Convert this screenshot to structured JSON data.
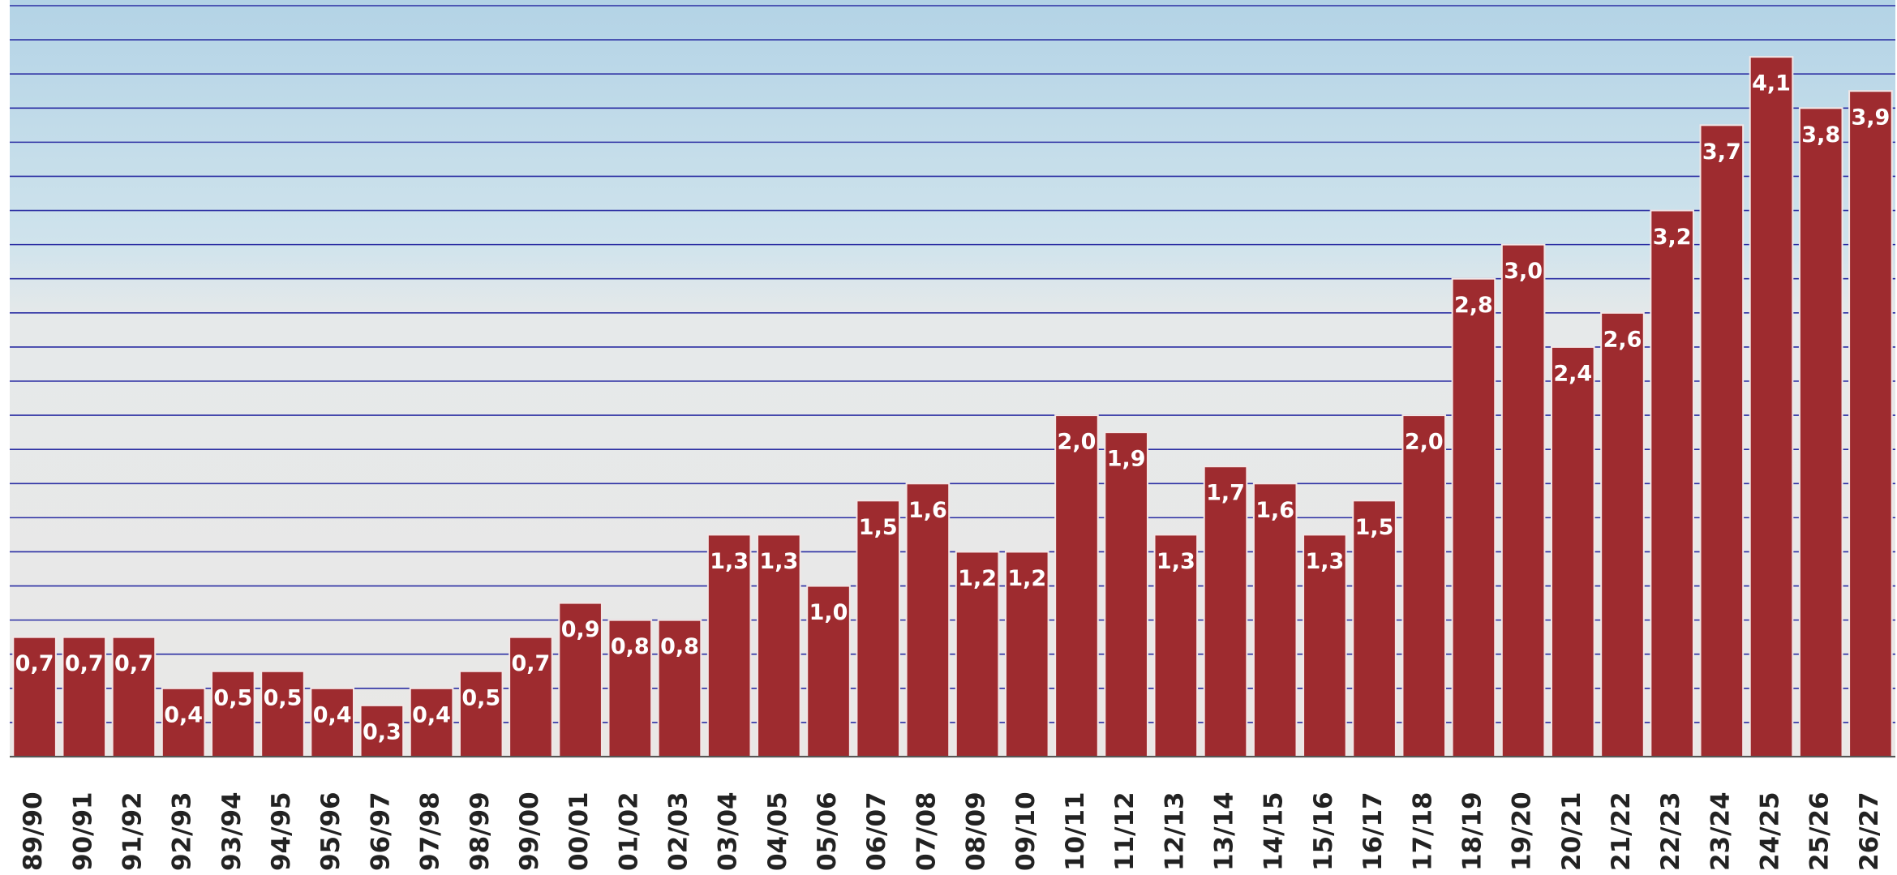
{
  "chart_data": {
    "type": "bar",
    "categories": [
      "89/90",
      "90/91",
      "91/92",
      "92/93",
      "93/94",
      "94/95",
      "95/96",
      "96/97",
      "97/98",
      "98/99",
      "99/00",
      "00/01",
      "01/02",
      "02/03",
      "03/04",
      "04/05",
      "05/06",
      "06/07",
      "07/08",
      "08/09",
      "09/10",
      "10/11",
      "11/12",
      "12/13",
      "13/14",
      "14/15",
      "15/16",
      "16/17",
      "17/18",
      "18/19",
      "19/20",
      "20/21",
      "21/22",
      "22/23",
      "23/24",
      "24/25",
      "25/26",
      "26/27"
    ],
    "values": [
      0.7,
      0.7,
      0.7,
      0.4,
      0.5,
      0.5,
      0.4,
      0.3,
      0.4,
      0.5,
      0.7,
      0.9,
      0.8,
      0.8,
      1.3,
      1.3,
      1.0,
      1.5,
      1.6,
      1.2,
      1.2,
      2.0,
      1.9,
      1.3,
      1.7,
      1.6,
      1.3,
      1.5,
      2.0,
      2.8,
      3.0,
      2.4,
      2.6,
      3.2,
      3.7,
      4.1,
      3.8,
      3.9
    ],
    "value_labels": [
      "0,7",
      "0,7",
      "0,7",
      "0,4",
      "0,5",
      "0,5",
      "0,4",
      "0,3",
      "0,4",
      "0,5",
      "0,7",
      "0,9",
      "0,8",
      "0,8",
      "1,3",
      "1,3",
      "1,0",
      "1,5",
      "1,6",
      "1,2",
      "1,2",
      "2,0",
      "1,9",
      "1,3",
      "1,7",
      "1,6",
      "1,3",
      "1,5",
      "2,0",
      "2,8",
      "3,0",
      "2,4",
      "2,6",
      "3,2",
      "3,7",
      "4,1",
      "3,8",
      "3,9"
    ],
    "color": "#9e2b2f",
    "ylim": [
      0,
      4.4
    ],
    "yticks": [
      0,
      0.2,
      0.4,
      0.6,
      0.8,
      1.0,
      1.2,
      1.4,
      1.6,
      1.8,
      2.0,
      2.2,
      2.4,
      2.6,
      2.8,
      3.0,
      3.2,
      3.4,
      3.6,
      3.8,
      4.0,
      4.2,
      4.4
    ],
    "grid": true
  }
}
